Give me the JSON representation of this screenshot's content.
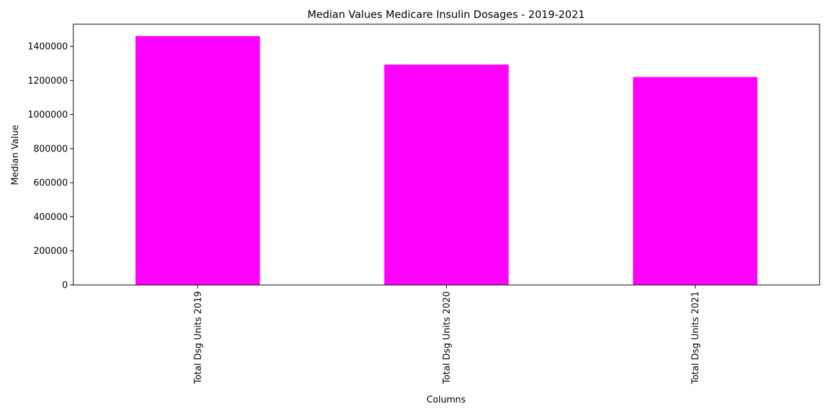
{
  "chart_data": {
    "type": "bar",
    "title": "Median Values Medicare Insulin Dosages - 2019-2021",
    "xlabel": "Columns",
    "ylabel": "Median Value",
    "categories": [
      "Total Dsg Units 2019",
      "Total Dsg Units 2020",
      "Total Dsg Units 2021"
    ],
    "values": [
      1460000,
      1293000,
      1220000
    ],
    "ylim": [
      0,
      1530000
    ],
    "yticks": [
      0,
      200000,
      400000,
      600000,
      800000,
      1000000,
      1200000,
      1400000
    ],
    "ytick_labels": [
      "0",
      "200000",
      "400000",
      "600000",
      "800000",
      "1000000",
      "1200000",
      "1400000"
    ],
    "bar_color": "#ff00ff",
    "grid": false,
    "legend": "none"
  }
}
